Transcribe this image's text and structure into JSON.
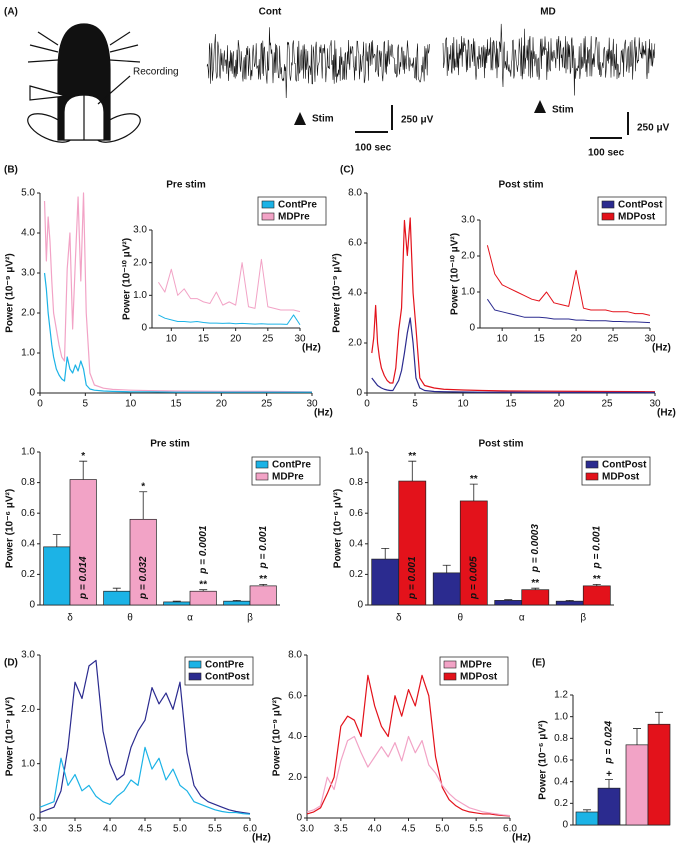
{
  "panel_labels": [
    "(A)",
    "(B)",
    "(C)",
    "(D)",
    "(E)"
  ],
  "panel_a": {
    "conditions": [
      "Cont",
      "MD"
    ],
    "recording_label": "Recording",
    "stim_labels": [
      "Stim",
      "Stim"
    ],
    "time_scale_labels": [
      "100 sec",
      "100 sec"
    ],
    "amplitude_scale_labels": [
      "250 μV",
      "250 μV"
    ]
  },
  "chart_data": [
    {
      "type": "line",
      "title": "Pre stim",
      "y_label": "Power (10⁻⁹ μV²)",
      "x_unit": "(Hz)",
      "x": [
        0.5,
        0.7,
        0.9,
        1.1,
        1.3,
        1.5,
        1.8,
        2.1,
        2.4,
        2.7,
        3.0,
        3.3,
        3.6,
        3.9,
        4.2,
        4.5,
        4.8,
        5.1,
        5.5,
        6,
        7,
        8,
        10,
        12,
        15,
        20,
        25,
        30
      ],
      "series": [
        {
          "name": "ContPre",
          "color": "#1cb3e6",
          "values": [
            3.0,
            2.6,
            2.0,
            1.6,
            1.2,
            0.9,
            0.6,
            0.45,
            0.35,
            0.3,
            0.9,
            0.6,
            0.5,
            0.7,
            0.55,
            0.8,
            0.6,
            0.2,
            0.1,
            0.07,
            0.05,
            0.04,
            0.03,
            0.03,
            0.02,
            0.02,
            0.02,
            0.02
          ]
        },
        {
          "name": "MDPre",
          "color": "#f2a3c6",
          "values": [
            4.8,
            3.3,
            4.4,
            3.8,
            2.8,
            2.0,
            1.6,
            1.2,
            0.9,
            0.8,
            3.1,
            4.0,
            1.6,
            3.3,
            4.9,
            2.8,
            5.0,
            2.0,
            0.5,
            0.2,
            0.12,
            0.09,
            0.07,
            0.06,
            0.05,
            0.04,
            0.04,
            0.03
          ]
        }
      ],
      "xlim": [
        0,
        30
      ],
      "xticks": [
        0,
        5,
        10,
        15,
        20,
        25,
        30
      ],
      "ylim": [
        0,
        5
      ],
      "yticks": [
        0,
        {
          "value": 1,
          "label": "1.0"
        },
        {
          "value": 2,
          "label": "2.0"
        },
        {
          "value": 3,
          "label": "3.0"
        },
        {
          "value": 4,
          "label": "4.0"
        },
        {
          "value": 5,
          "label": "5.0"
        }
      ],
      "legend": "upper right",
      "inset": {
        "y_label": "Power (10⁻¹⁰ μV²)",
        "x_unit": "(Hz)",
        "x": [
          8,
          9,
          10,
          11,
          12,
          13,
          14,
          15,
          16,
          17,
          18,
          19,
          20,
          21,
          22,
          23,
          24,
          25,
          26,
          27,
          28,
          29,
          30
        ],
        "series": [
          {
            "values": [
              0.4,
              0.3,
              0.25,
              0.2,
              0.2,
              0.18,
              0.2,
              0.17,
              0.15,
              0.15,
              0.14,
              0.15,
              0.13,
              0.14,
              0.13,
              0.12,
              0.13,
              0.12,
              0.12,
              0.12,
              0.11,
              0.4,
              0.1
            ]
          },
          {
            "values": [
              1.4,
              1.1,
              1.8,
              1.0,
              1.2,
              0.9,
              0.9,
              0.8,
              0.75,
              1.1,
              0.7,
              0.8,
              0.7,
              2.0,
              0.65,
              0.6,
              2.1,
              0.65,
              0.6,
              0.55,
              0.55,
              0.55,
              0.5
            ]
          }
        ],
        "xlim": [
          7,
          30
        ],
        "xticks": [
          10,
          15,
          20,
          25,
          30
        ],
        "ylim": [
          0,
          3
        ],
        "yticks": [
          0,
          {
            "value": 1,
            "label": "1.0"
          },
          {
            "value": 2,
            "label": "2.0"
          },
          {
            "value": 3,
            "label": "3.0"
          }
        ]
      }
    },
    {
      "type": "line",
      "title": "Post stim",
      "y_label": "Power (10⁻⁹ μV²)",
      "x_unit": "(Hz)",
      "x": [
        0.5,
        0.7,
        0.9,
        1.1,
        1.3,
        1.5,
        1.8,
        2.1,
        2.4,
        2.7,
        3.0,
        3.3,
        3.6,
        3.9,
        4.2,
        4.5,
        4.8,
        5.1,
        5.5,
        6,
        7,
        8,
        10,
        12,
        15,
        20,
        25,
        30
      ],
      "series": [
        {
          "name": "ContPost",
          "color": "#2b2b8f",
          "values": [
            0.6,
            0.5,
            0.4,
            0.3,
            0.25,
            0.2,
            0.15,
            0.12,
            0.1,
            0.1,
            0.3,
            0.5,
            0.9,
            1.6,
            2.4,
            3.0,
            2.0,
            0.6,
            0.2,
            0.1,
            0.06,
            0.05,
            0.04,
            0.03,
            0.03,
            0.02,
            0.02,
            0.02
          ]
        },
        {
          "name": "MDPost",
          "color": "#e3121b",
          "values": [
            1.6,
            2.2,
            3.5,
            2.0,
            1.4,
            1.0,
            0.7,
            0.5,
            0.4,
            0.4,
            1.0,
            2.5,
            3.4,
            6.9,
            5.5,
            7.0,
            4.0,
            2.6,
            0.6,
            0.3,
            0.2,
            0.15,
            0.12,
            0.1,
            0.08,
            0.07,
            0.06,
            0.05
          ]
        }
      ],
      "xlim": [
        0,
        30
      ],
      "xticks": [
        0,
        5,
        10,
        15,
        20,
        25,
        30
      ],
      "ylim": [
        0,
        8
      ],
      "yticks": [
        0,
        {
          "value": 2,
          "label": "2.0"
        },
        {
          "value": 4,
          "label": "4.0"
        },
        {
          "value": 6,
          "label": "6.0"
        },
        {
          "value": 8,
          "label": "8.0"
        }
      ],
      "legend": "upper right",
      "inset": {
        "y_label": "Power (10⁻¹⁰ μV²)",
        "x_unit": "(Hz)",
        "x": [
          8,
          9,
          10,
          11,
          12,
          13,
          14,
          15,
          16,
          17,
          18,
          19,
          20,
          21,
          22,
          23,
          24,
          25,
          26,
          27,
          28,
          29,
          30
        ],
        "series": [
          {
            "values": [
              0.8,
              0.5,
              0.45,
              0.4,
              0.35,
              0.3,
              0.3,
              0.3,
              0.28,
              0.25,
              0.25,
              0.25,
              0.22,
              0.22,
              0.2,
              0.2,
              0.2,
              0.18,
              0.18,
              0.17,
              0.17,
              0.16,
              0.15
            ]
          },
          {
            "values": [
              2.3,
              1.5,
              1.2,
              1.1,
              1.0,
              0.9,
              0.8,
              0.75,
              1.0,
              0.7,
              0.65,
              0.6,
              1.6,
              0.55,
              0.5,
              0.5,
              0.5,
              0.45,
              0.45,
              0.45,
              0.4,
              0.4,
              0.35
            ]
          }
        ],
        "xlim": [
          7,
          30
        ],
        "xticks": [
          10,
          15,
          20,
          25,
          30
        ],
        "ylim": [
          0,
          3
        ],
        "yticks": [
          0,
          {
            "value": 1,
            "label": "1.0"
          },
          {
            "value": 2,
            "label": "2.0"
          },
          {
            "value": 3,
            "label": "3.0"
          }
        ]
      }
    },
    {
      "type": "bar",
      "title": "Pre stim",
      "y_label": "Power (10⁻⁶ μV²)",
      "categories": [
        "δ",
        "θ",
        "α",
        "β"
      ],
      "series": [
        {
          "name": "ContPre",
          "color": "#1cb3e6",
          "values": [
            0.38,
            0.09,
            0.02,
            0.025
          ],
          "errors": [
            0.08,
            0.02,
            0.005,
            0.005
          ]
        },
        {
          "name": "MDPre",
          "color": "#f2a3c6",
          "values": [
            0.82,
            0.56,
            0.09,
            0.125
          ],
          "errors": [
            0.12,
            0.18,
            0.01,
            0.01
          ],
          "significance": [
            "*",
            "*",
            "**",
            "**"
          ],
          "p_labels": [
            "p = 0.014",
            "p = 0.032",
            "p = 0.0001",
            "p = 0.001"
          ]
        }
      ],
      "ylim": [
        0,
        1
      ],
      "yticks": [
        0,
        0.2,
        0.4,
        0.6,
        0.8,
        {
          "value": 1,
          "label": "1.0"
        }
      ],
      "legend": "upper right"
    },
    {
      "type": "bar",
      "title": "Post stim",
      "y_label": "Power (10⁻⁶ μV²)",
      "categories": [
        "δ",
        "θ",
        "α",
        "β"
      ],
      "series": [
        {
          "name": "ContPost",
          "color": "#2b2b8f",
          "values": [
            0.3,
            0.21,
            0.03,
            0.025
          ],
          "errors": [
            0.07,
            0.05,
            0.005,
            0.005
          ]
        },
        {
          "name": "MDPost",
          "color": "#e3121b",
          "values": [
            0.81,
            0.68,
            0.1,
            0.125
          ],
          "errors": [
            0.13,
            0.11,
            0.01,
            0.01
          ],
          "significance": [
            "**",
            "**",
            "**",
            "**"
          ],
          "p_labels": [
            "p = 0.001",
            "p = 0.005",
            "p = 0.0003",
            "p = 0.001"
          ]
        }
      ],
      "ylim": [
        0,
        1
      ],
      "yticks": [
        0,
        0.2,
        0.4,
        0.6,
        0.8,
        {
          "value": 1,
          "label": "1.0"
        }
      ],
      "legend": "upper right"
    },
    {
      "type": "line",
      "y_label": "Power (10⁻⁹ μV²)",
      "x_unit": "(Hz)",
      "x": [
        3,
        3.1,
        3.2,
        3.3,
        3.4,
        3.5,
        3.6,
        3.7,
        3.8,
        3.9,
        4,
        4.1,
        4.2,
        4.3,
        4.4,
        4.5,
        4.6,
        4.7,
        4.8,
        4.9,
        5,
        5.1,
        5.2,
        5.3,
        5.4,
        5.5,
        5.6,
        5.7,
        5.8,
        5.9,
        6
      ],
      "series": [
        {
          "name": "ContPre",
          "color": "#1cb3e6",
          "values": [
            0.2,
            0.25,
            0.3,
            1.1,
            0.6,
            0.8,
            0.5,
            0.6,
            0.4,
            0.3,
            0.25,
            0.4,
            0.5,
            0.7,
            0.6,
            1.3,
            0.9,
            1.1,
            0.7,
            0.9,
            0.6,
            0.5,
            0.3,
            0.25,
            0.2,
            0.15,
            0.12,
            0.1,
            0.1,
            0.08,
            0.07
          ]
        },
        {
          "name": "ContPost",
          "color": "#2b2b8f",
          "values": [
            0.1,
            0.15,
            0.2,
            0.5,
            1.3,
            2.5,
            2.2,
            2.8,
            2.9,
            1.6,
            1.0,
            0.7,
            0.8,
            1.3,
            1.6,
            1.8,
            2.4,
            2.1,
            2.3,
            2.0,
            2.5,
            1.2,
            0.6,
            0.4,
            0.3,
            0.25,
            0.2,
            0.15,
            0.12,
            0.1,
            0.08
          ]
        }
      ],
      "xlim": [
        3,
        6
      ],
      "xticks": [
        {
          "value": 3,
          "label": "3.0"
        },
        3.5,
        {
          "value": 4,
          "label": "4.0"
        },
        4.5,
        {
          "value": 5,
          "label": "5.0"
        },
        5.5,
        {
          "value": 6,
          "label": "6.0"
        }
      ],
      "ylim": [
        0,
        3
      ],
      "yticks": [
        0,
        {
          "value": 1,
          "label": "1.0"
        },
        {
          "value": 2,
          "label": "2.0"
        },
        {
          "value": 3,
          "label": "3.0"
        }
      ],
      "legend": "upper right"
    },
    {
      "type": "line",
      "y_label": "Power (10⁻⁹ μV²)",
      "x_unit": "(Hz)",
      "x": [
        3,
        3.1,
        3.2,
        3.3,
        3.4,
        3.5,
        3.6,
        3.7,
        3.8,
        3.9,
        4,
        4.1,
        4.2,
        4.3,
        4.4,
        4.5,
        4.6,
        4.7,
        4.8,
        4.9,
        5,
        5.1,
        5.2,
        5.3,
        5.4,
        5.5,
        5.6,
        5.7,
        5.8,
        5.9,
        6
      ],
      "series": [
        {
          "name": "MDPre",
          "color": "#f2a3c6",
          "values": [
            0.3,
            0.4,
            0.6,
            2.0,
            1.4,
            2.8,
            3.8,
            4.0,
            3.2,
            2.5,
            3.0,
            3.5,
            3.0,
            3.7,
            2.8,
            4.0,
            3.2,
            3.8,
            2.6,
            2.2,
            1.6,
            1.2,
            0.9,
            0.7,
            0.5,
            0.4,
            0.3,
            0.25,
            0.2,
            0.15,
            0.12
          ]
        },
        {
          "name": "MDPost",
          "color": "#e3121b",
          "values": [
            0.2,
            0.3,
            0.5,
            1.2,
            2.0,
            4.5,
            5.0,
            4.8,
            4.0,
            7.0,
            5.5,
            4.5,
            4.0,
            6.0,
            5.0,
            6.3,
            5.5,
            7.0,
            6.0,
            3.0,
            1.5,
            0.9,
            0.6,
            0.4,
            0.3,
            0.25,
            0.2,
            0.2,
            0.15,
            0.12,
            0.1
          ]
        }
      ],
      "xlim": [
        3,
        6
      ],
      "xticks": [
        {
          "value": 3,
          "label": "3.0"
        },
        3.5,
        {
          "value": 4,
          "label": "4.0"
        },
        4.5,
        {
          "value": 5,
          "label": "5.0"
        },
        5.5,
        {
          "value": 6,
          "label": "6.0"
        }
      ],
      "ylim": [
        0,
        8
      ],
      "yticks": [
        0,
        {
          "value": 2,
          "label": "2.0"
        },
        {
          "value": 4,
          "label": "4.0"
        },
        {
          "value": 6,
          "label": "6.0"
        },
        {
          "value": 8,
          "label": "8.0"
        }
      ],
      "legend": "upper right"
    },
    {
      "type": "bar",
      "y_label": "Power (10⁻⁶ μV²)",
      "values": [
        0.12,
        0.34,
        0.74,
        0.93
      ],
      "errors": [
        0.02,
        0.08,
        0.15,
        0.11
      ],
      "colors": [
        "#1cb3e6",
        "#2b2b8f",
        "#f2a3c6",
        "#e3121b"
      ],
      "significance": [
        null,
        "+",
        null,
        null
      ],
      "p_labels": [
        null,
        "p = 0.024",
        null,
        null
      ],
      "ylim": [
        0,
        1.2
      ],
      "yticks": [
        0,
        0.2,
        0.4,
        0.6,
        0.8,
        {
          "value": 1,
          "label": "1.0"
        },
        1.2
      ]
    }
  ]
}
